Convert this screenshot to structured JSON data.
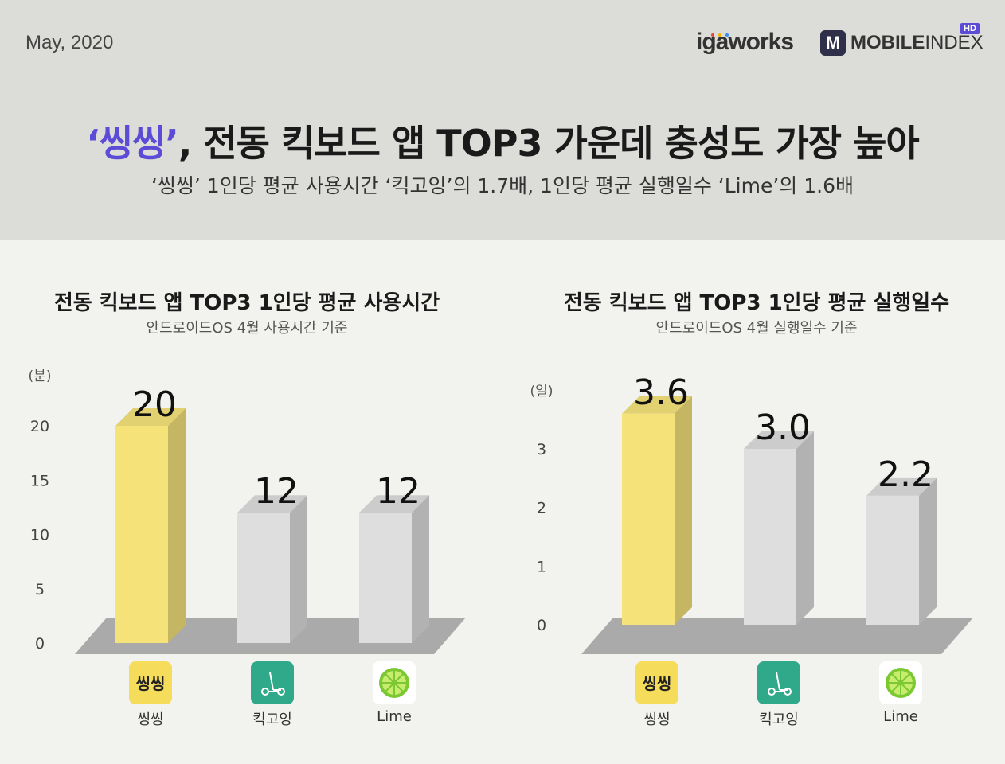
{
  "header": {
    "date": "May, 2020",
    "logo_iga": "igaworks",
    "logo_mi_mark": "M",
    "logo_mi_bold": "MOBILE",
    "logo_mi_light": "INDEX",
    "logo_hd": "HD",
    "title_highlight": "‘씽씽’",
    "title_rest": ", 전동 킥보드 앱 TOP3 가운데 충성도 가장 높아",
    "subtitle": "‘씽씽’ 1인당 평균 사용시간 ‘킥고잉’의 1.7배, 1인당 평균 실행일수 ‘Lime’의 1.6배",
    "accent_color": "#5b4bd6"
  },
  "apps": [
    {
      "name": "씽씽",
      "icon": "ssingssing-logo-icon",
      "color": "#f5dc5a"
    },
    {
      "name": "킥고잉",
      "icon": "kickscooter-icon",
      "color": "#2fa98a"
    },
    {
      "name": "Lime",
      "icon": "lime-fruit-icon",
      "color": "#ffffff"
    }
  ],
  "chart_data": [
    {
      "type": "bar",
      "title": "전동 킥보드 앱 TOP3 1인당 평균 사용시간",
      "subtitle": "안드로이드OS 4월 사용시간 기준",
      "unit_label": "(분)",
      "categories": [
        "씽씽",
        "킥고잉",
        "Lime"
      ],
      "values": [
        20,
        12,
        12
      ],
      "value_labels": [
        "20",
        "12",
        "12"
      ],
      "yticks": [
        "0",
        "5",
        "10",
        "15",
        "20"
      ],
      "ylim": [
        0,
        20
      ],
      "bar_colors": [
        "#f5e37a",
        "#dedede",
        "#dedede"
      ]
    },
    {
      "type": "bar",
      "title": "전동 킥보드 앱 TOP3 1인당 평균 실행일수",
      "subtitle": "안드로이드OS 4월 실행일수 기준",
      "unit_label": "(일)",
      "categories": [
        "씽씽",
        "킥고잉",
        "Lime"
      ],
      "values": [
        3.6,
        3.0,
        2.2
      ],
      "value_labels": [
        "3.6",
        "3.0",
        "2.2"
      ],
      "yticks": [
        "0",
        "1",
        "2",
        "3"
      ],
      "ylim": [
        0,
        3
      ],
      "bar_colors": [
        "#f5e37a",
        "#dedede",
        "#dedede"
      ]
    }
  ]
}
